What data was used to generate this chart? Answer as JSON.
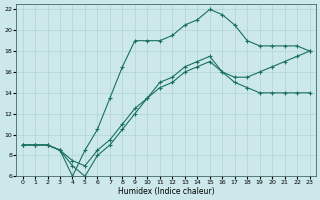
{
  "xlabel": "Humidex (Indice chaleur)",
  "xlim": [
    -0.5,
    23.5
  ],
  "ylim": [
    6,
    22.5
  ],
  "xticks": [
    0,
    1,
    2,
    3,
    4,
    5,
    6,
    7,
    8,
    9,
    10,
    11,
    12,
    13,
    14,
    15,
    16,
    17,
    18,
    19,
    20,
    21,
    22,
    23
  ],
  "yticks": [
    6,
    8,
    10,
    12,
    14,
    16,
    18,
    20,
    22
  ],
  "line_color": "#1a7060",
  "bg_color": "#cce8ea",
  "grid_color": "#aacfcf",
  "lines": [
    {
      "x": [
        0,
        1,
        2,
        3,
        4,
        5,
        6,
        7,
        8,
        9,
        10,
        11,
        12,
        13,
        14,
        15,
        16,
        17,
        18,
        19,
        20,
        21,
        22,
        23
      ],
      "y": [
        9,
        9,
        9,
        8.5,
        6,
        8.5,
        10.5,
        13.5,
        16.5,
        19,
        19,
        19,
        19.5,
        20.5,
        21,
        22,
        21.5,
        20.5,
        19,
        18.5,
        18.5,
        18.5,
        18.5,
        18
      ]
    },
    {
      "x": [
        0,
        1,
        2,
        3,
        4,
        5,
        6,
        7,
        8,
        9,
        10,
        11,
        12,
        13,
        14,
        15,
        16,
        17,
        18,
        19,
        20,
        21,
        22,
        23
      ],
      "y": [
        9,
        9,
        9,
        8.5,
        7,
        6,
        8,
        9,
        10.5,
        12,
        13.5,
        15,
        15.5,
        16.5,
        17,
        17.5,
        16,
        15,
        14.5,
        14,
        14,
        14,
        14,
        14
      ]
    },
    {
      "x": [
        0,
        1,
        2,
        3,
        4,
        5,
        6,
        7,
        8,
        9,
        10,
        11,
        12,
        13,
        14,
        15,
        16,
        17,
        18,
        19,
        20,
        21,
        22,
        23
      ],
      "y": [
        9,
        9,
        9,
        8.5,
        7.5,
        7,
        8.5,
        9.5,
        11,
        12.5,
        13.5,
        14.5,
        15,
        16,
        16.5,
        17,
        16,
        15.5,
        15.5,
        16,
        16.5,
        17,
        17.5,
        18
      ]
    }
  ]
}
